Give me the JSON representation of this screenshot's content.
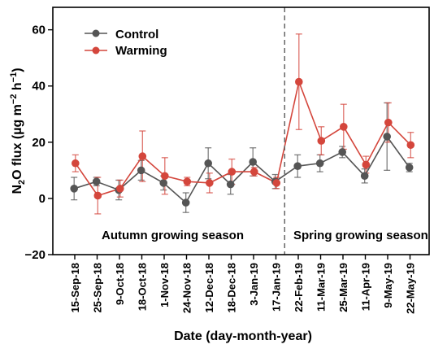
{
  "chart_data": {
    "type": "line",
    "xlabel": "Date (day-month-year)",
    "ylabel_parts": [
      "N",
      "2",
      "O flux (µg m",
      "−2",
      " h",
      "−1",
      ")"
    ],
    "yticks": [
      60,
      40,
      20,
      0,
      -20
    ],
    "ytick_labels": [
      "60",
      "40",
      "20",
      "0",
      "−20"
    ],
    "ylim": [
      -20,
      68
    ],
    "categories": [
      "15-Sep-18",
      "25-Sep-18",
      "9-Oct-18",
      "18-Oct-18",
      "1-Nov-18",
      "24-Nov-18",
      "12-Dec-18",
      "18-Dec-18",
      "3-Jan-19",
      "17-Jan-19",
      "22-Feb-19",
      "11-Mar-19",
      "25-Mar-19",
      "11-Apr-19",
      "9-May-19",
      "22-May-19"
    ],
    "series": [
      {
        "name": "Control",
        "color": "#555555",
        "values": [
          3.5,
          6.0,
          3.0,
          10.0,
          5.5,
          -1.5,
          12.5,
          5.0,
          13.0,
          6.0,
          11.5,
          12.5,
          16.5,
          8.0,
          22.0,
          11.0
        ],
        "errors": [
          4.0,
          1.5,
          3.5,
          3.5,
          2.5,
          3.5,
          5.5,
          3.5,
          5.0,
          2.5,
          4.0,
          3.0,
          2.0,
          2.5,
          12.0,
          1.5
        ]
      },
      {
        "name": "Warming",
        "color": "#d4463c",
        "values": [
          12.5,
          1.0,
          3.5,
          15.0,
          8.0,
          6.0,
          5.5,
          9.5,
          9.5,
          5.5,
          41.5,
          20.5,
          25.5,
          12.0,
          27.0,
          19.0
        ],
        "errors": [
          3.0,
          6.5,
          3.0,
          9.0,
          6.5,
          1.5,
          3.5,
          4.5,
          1.5,
          2.0,
          17.0,
          5.0,
          8.0,
          3.0,
          7.0,
          4.5
        ]
      }
    ],
    "divider_after_index": 9,
    "annotations": [
      "Autumn growing season",
      "Spring growing season"
    ],
    "legend_position": "top-left",
    "grid": false
  }
}
